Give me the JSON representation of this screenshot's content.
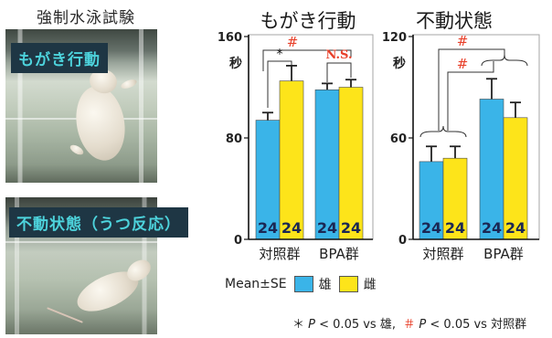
{
  "figure": {
    "left_title": "強制水泳試験",
    "photos": [
      {
        "label": "もがき行動"
      },
      {
        "label": "不動状態（うつ反応）"
      }
    ]
  },
  "chart_data": [
    {
      "type": "bar",
      "title": "もがき行動",
      "ylabel": "秒",
      "ylim": [
        0,
        160
      ],
      "yticks": [
        0,
        80,
        160
      ],
      "grid": false,
      "categories": [
        "対照群",
        "BPA群"
      ],
      "series": [
        {
          "name": "雄",
          "color": "#3ab4e8",
          "values": [
            94,
            118
          ],
          "se": [
            6,
            5
          ],
          "n": [
            24,
            24
          ]
        },
        {
          "name": "雌",
          "color": "#fde41a",
          "values": [
            125,
            120
          ],
          "se": [
            12,
            6
          ],
          "n": [
            24,
            24
          ]
        }
      ],
      "annotations": [
        {
          "text": "#",
          "color": "#e8402a"
        },
        {
          "text": "*",
          "color": "#222222"
        },
        {
          "text": "N.S.",
          "color": "#e8402a"
        }
      ]
    },
    {
      "type": "bar",
      "title": "不動状態",
      "ylabel": "秒",
      "ylim": [
        0,
        120
      ],
      "yticks": [
        0,
        60,
        120
      ],
      "grid": false,
      "categories": [
        "対照群",
        "BPA群"
      ],
      "series": [
        {
          "name": "雄",
          "color": "#3ab4e8",
          "values": [
            46,
            83
          ],
          "se": [
            9,
            12
          ],
          "n": [
            24,
            24
          ]
        },
        {
          "name": "雌",
          "color": "#fde41a",
          "values": [
            48,
            72
          ],
          "se": [
            7,
            9
          ],
          "n": [
            24,
            24
          ]
        }
      ],
      "annotations": [
        {
          "text": "#",
          "color": "#e8402a"
        },
        {
          "text": "#",
          "color": "#e8402a"
        }
      ]
    }
  ],
  "legend": {
    "label": "Mean±SE",
    "placement": "bottom"
  },
  "footnote": {
    "star": {
      "symbol": "＊",
      "p": "P",
      "text": "< 0.05 vs 雄,"
    },
    "hash": {
      "symbol": "＃",
      "p": "P",
      "text": "< 0.05 vs 対照群",
      "color": "#e8402a"
    }
  }
}
